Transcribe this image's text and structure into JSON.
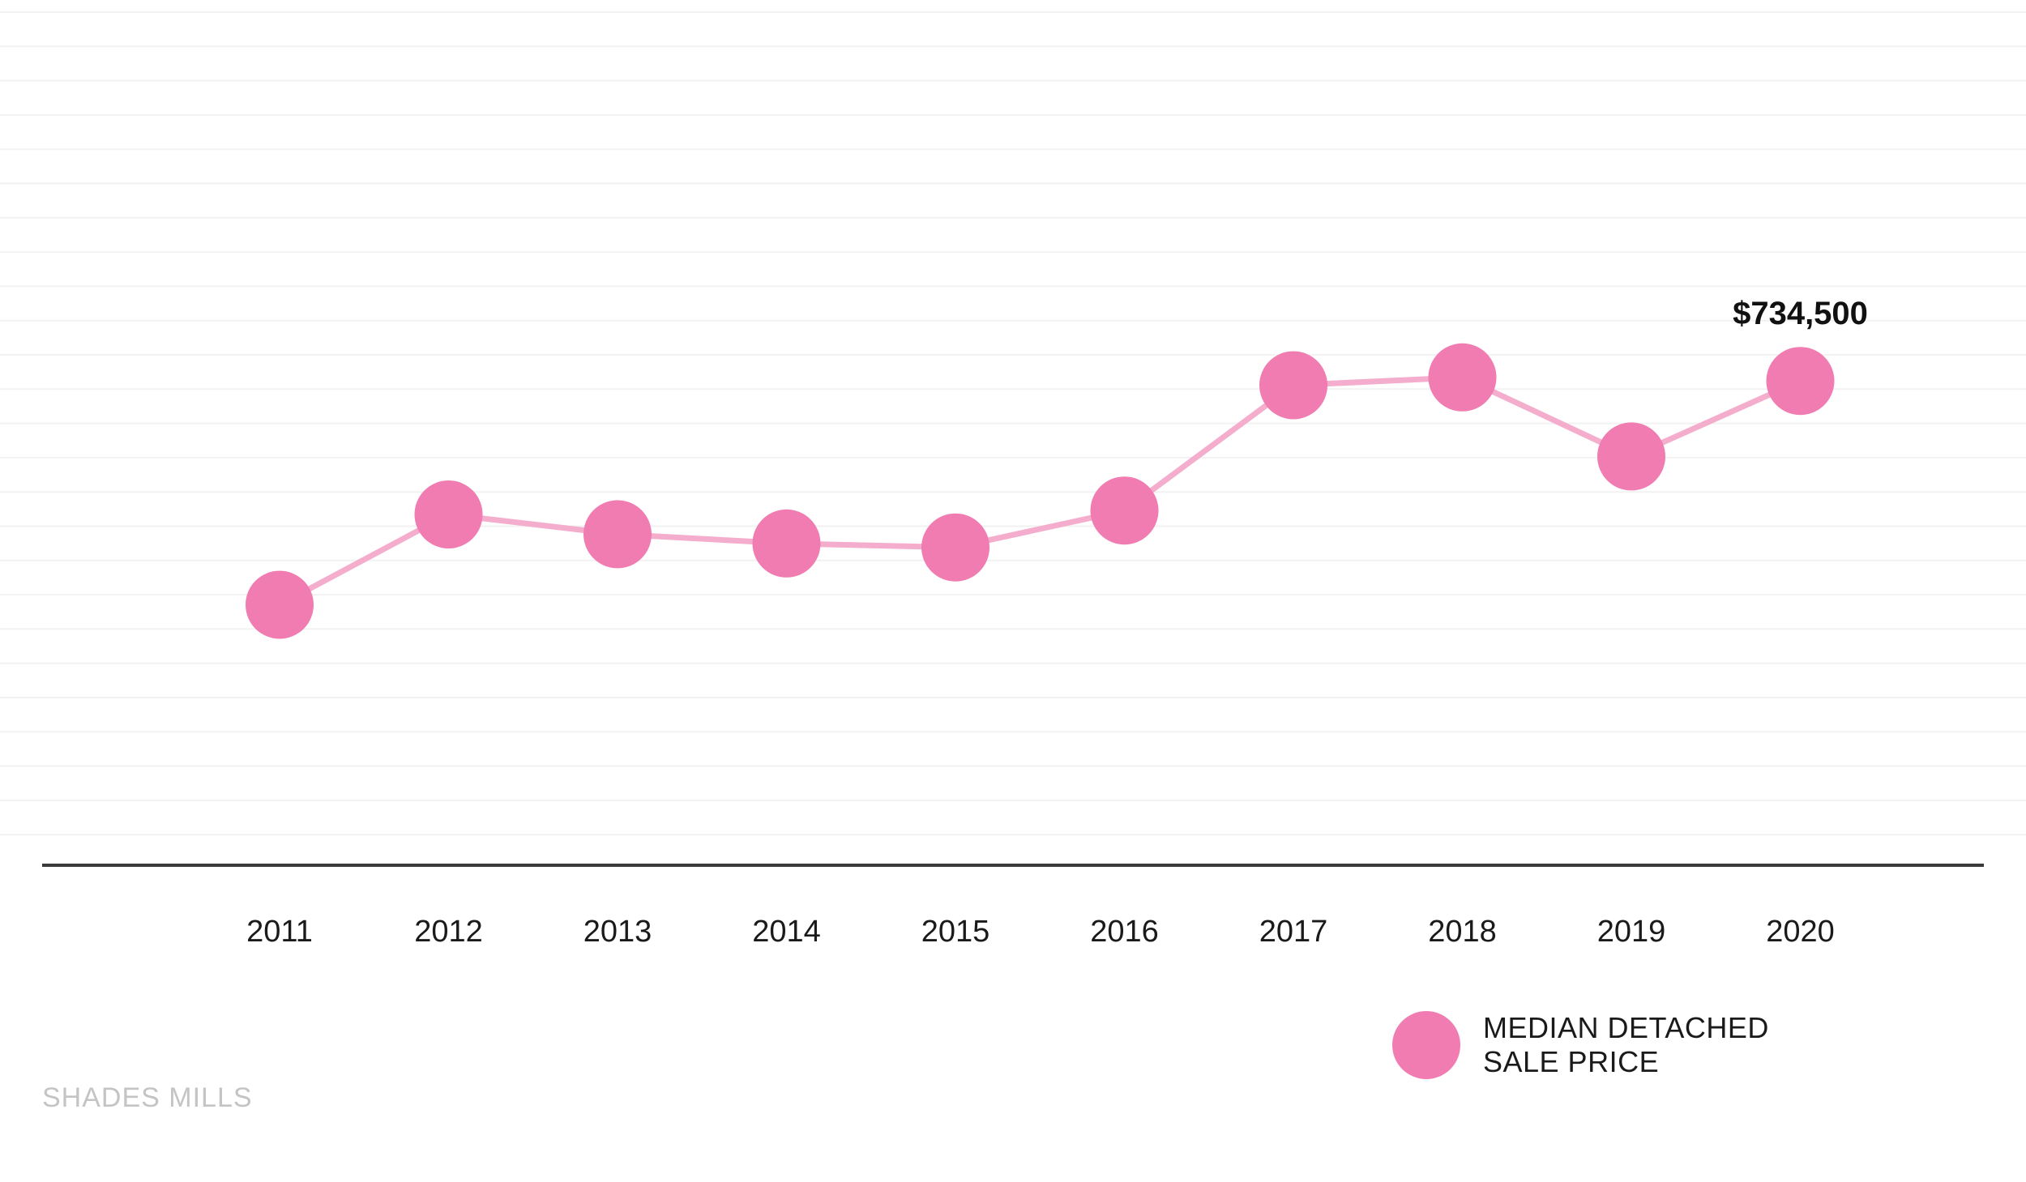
{
  "chart_data": {
    "type": "line",
    "categories": [
      "2011",
      "2012",
      "2013",
      "2014",
      "2015",
      "2016",
      "2017",
      "2018",
      "2019",
      "2020"
    ],
    "series": [
      {
        "name": "MEDIAN DETACHED SALE PRICE",
        "values": [
          395000,
          532000,
          502000,
          488000,
          482000,
          538000,
          728000,
          740000,
          620000,
          734500
        ]
      }
    ],
    "data_labels": [
      {
        "category": "2020",
        "text": "$734,500"
      }
    ],
    "title": "",
    "xlabel": "",
    "ylabel": "",
    "ylim": [
      0,
      1300000
    ],
    "grid": true,
    "legend": "bottom-right",
    "colors": {
      "marker": "#f07cb1",
      "line": "#f4adcd",
      "gridline": "#f2f2f2",
      "axis": "#3a3a3a"
    }
  },
  "legend": {
    "line1": "MEDIAN DETACHED",
    "line2": "SALE PRICE"
  },
  "watermark": "SHADES MILLS"
}
